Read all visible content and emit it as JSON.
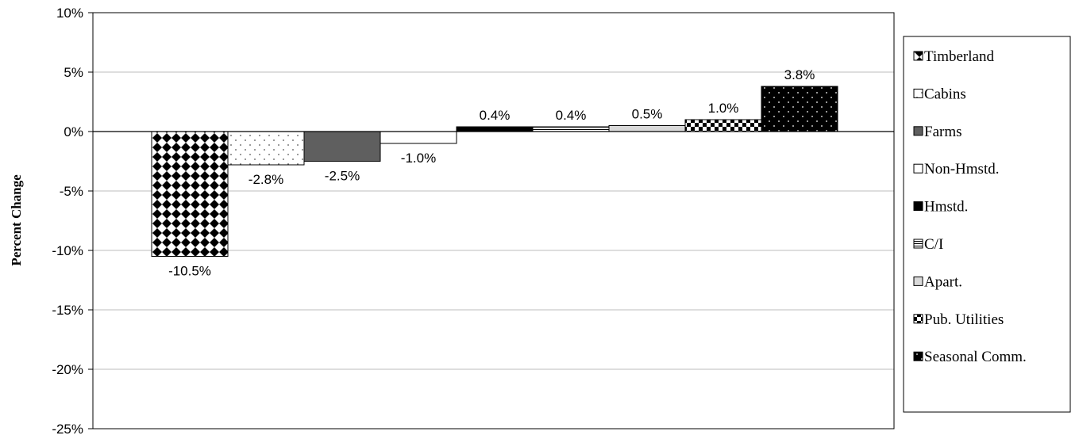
{
  "chart_data": {
    "type": "bar",
    "ylabel": "Percent Change",
    "xlabel": "",
    "ylim": [
      -25,
      10
    ],
    "y_ticks": [
      10,
      5,
      0,
      -5,
      -10,
      -15,
      -20,
      -25
    ],
    "y_tick_labels": [
      "10%",
      "5%",
      "0%",
      "-5%",
      "-10%",
      "-15%",
      "-20%",
      "-25%"
    ],
    "grid": true,
    "legend_position": "right",
    "series": [
      {
        "name": "Timberland",
        "value": -10.5,
        "label": "-10.5%",
        "pattern": "diamond"
      },
      {
        "name": "Cabins",
        "value": -2.8,
        "label": "-2.8%",
        "pattern": "dots-light"
      },
      {
        "name": "Farms",
        "value": -2.5,
        "label": "-2.5%",
        "pattern": "solid-gray"
      },
      {
        "name": "Non-Hmstd.",
        "value": -1.0,
        "label": "-1.0%",
        "pattern": "white"
      },
      {
        "name": "Hmstd.",
        "value": 0.4,
        "label": "0.4%",
        "pattern": "solid-black"
      },
      {
        "name": "C/I",
        "value": 0.4,
        "label": "0.4%",
        "pattern": "hlines"
      },
      {
        "name": "Apart.",
        "value": 0.5,
        "label": "0.5%",
        "pattern": "light-gray"
      },
      {
        "name": "Pub. Utilities",
        "value": 1.0,
        "label": "1.0%",
        "pattern": "checker"
      },
      {
        "name": "Seasonal Comm.",
        "value": 3.8,
        "label": "3.8%",
        "pattern": "dots-dark"
      }
    ]
  }
}
